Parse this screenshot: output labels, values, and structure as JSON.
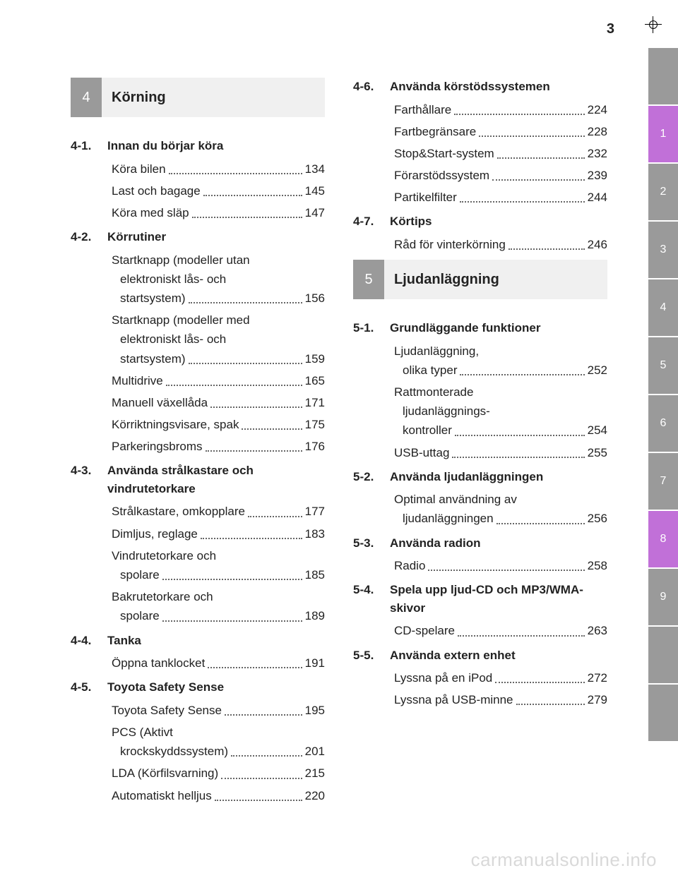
{
  "page_number": "3",
  "watermark": "carmanualsonline.info",
  "tabs": [
    {
      "label": "",
      "style": "gray"
    },
    {
      "label": "1",
      "style": "active"
    },
    {
      "label": "2",
      "style": "gray"
    },
    {
      "label": "3",
      "style": "gray"
    },
    {
      "label": "4",
      "style": "gray"
    },
    {
      "label": "5",
      "style": "gray"
    },
    {
      "label": "6",
      "style": "gray"
    },
    {
      "label": "7",
      "style": "gray"
    },
    {
      "label": "8",
      "style": "active"
    },
    {
      "label": "9",
      "style": "gray"
    },
    {
      "label": "",
      "style": "gray"
    },
    {
      "label": "",
      "style": "gray"
    }
  ],
  "left": {
    "chapter": {
      "num": "4",
      "title": "Körning"
    },
    "sections": [
      {
        "num": "4-1.",
        "title": "Innan du börjar köra",
        "entries": [
          {
            "lines": [
              "Köra bilen"
            ],
            "page": "134"
          },
          {
            "lines": [
              "Last och bagage"
            ],
            "page": "145"
          },
          {
            "lines": [
              "Köra med släp"
            ],
            "page": "147"
          }
        ]
      },
      {
        "num": "4-2.",
        "title": "Körrutiner",
        "entries": [
          {
            "lines": [
              "Startknapp (modeller utan",
              "elektroniskt lås- och",
              "startsystem)"
            ],
            "page": "156"
          },
          {
            "lines": [
              "Startknapp (modeller med",
              "elektroniskt lås- och",
              "startsystem)"
            ],
            "page": "159"
          },
          {
            "lines": [
              "Multidrive"
            ],
            "page": "165"
          },
          {
            "lines": [
              "Manuell växellåda"
            ],
            "page": "171"
          },
          {
            "lines": [
              "Körriktningsvisare, spak"
            ],
            "page": "175"
          },
          {
            "lines": [
              "Parkeringsbroms"
            ],
            "page": "176"
          }
        ]
      },
      {
        "num": "4-3.",
        "title": "Använda strålkastare och vindrutetorkare",
        "entries": [
          {
            "lines": [
              "Strålkastare, omkopplare"
            ],
            "page": "177"
          },
          {
            "lines": [
              "Dimljus, reglage"
            ],
            "page": "183"
          },
          {
            "lines": [
              "Vindrutetorkare och",
              "spolare"
            ],
            "page": "185"
          },
          {
            "lines": [
              "Bakrutetorkare och",
              "spolare"
            ],
            "page": "189"
          }
        ]
      },
      {
        "num": "4-4.",
        "title": "Tanka",
        "entries": [
          {
            "lines": [
              "Öppna tanklocket"
            ],
            "page": "191"
          }
        ]
      },
      {
        "num": "4-5.",
        "title": "Toyota Safety Sense",
        "entries": [
          {
            "lines": [
              "Toyota Safety Sense"
            ],
            "page": "195"
          },
          {
            "lines": [
              "PCS (Aktivt",
              "krockskyddssystem)"
            ],
            "page": "201"
          },
          {
            "lines": [
              "LDA (Körfilsvarning)"
            ],
            "page": "215"
          },
          {
            "lines": [
              "Automatiskt helljus"
            ],
            "page": "220"
          }
        ]
      }
    ]
  },
  "right": {
    "top_sections": [
      {
        "num": "4-6.",
        "title": "Använda körstödssystemen",
        "entries": [
          {
            "lines": [
              "Farthållare"
            ],
            "page": "224"
          },
          {
            "lines": [
              "Fartbegränsare"
            ],
            "page": "228"
          },
          {
            "lines": [
              "Stop&Start-system"
            ],
            "page": "232"
          },
          {
            "lines": [
              "Förarstödssystem"
            ],
            "page": "239"
          },
          {
            "lines": [
              "Partikelfilter"
            ],
            "page": "244"
          }
        ]
      },
      {
        "num": "4-7.",
        "title": "Körtips",
        "entries": [
          {
            "lines": [
              "Råd för vinterkörning"
            ],
            "page": "246"
          }
        ]
      }
    ],
    "chapter": {
      "num": "5",
      "title": "Ljudanläggning"
    },
    "sections": [
      {
        "num": "5-1.",
        "title": "Grundläggande funktioner",
        "entries": [
          {
            "lines": [
              "Ljudanläggning,",
              "olika typer"
            ],
            "page": "252"
          },
          {
            "lines": [
              "Rattmonterade",
              "ljudanläggnings-",
              "kontroller"
            ],
            "page": "254"
          },
          {
            "lines": [
              "USB-uttag"
            ],
            "page": "255"
          }
        ]
      },
      {
        "num": "5-2.",
        "title": "Använda ljudanläggningen",
        "entries": [
          {
            "lines": [
              "Optimal användning av",
              "ljudanläggningen"
            ],
            "page": "256"
          }
        ]
      },
      {
        "num": "5-3.",
        "title": "Använda radion",
        "entries": [
          {
            "lines": [
              "Radio"
            ],
            "page": "258"
          }
        ]
      },
      {
        "num": "5-4.",
        "title": "Spela upp ljud-CD och MP3/WMA-skivor",
        "entries": [
          {
            "lines": [
              "CD-spelare"
            ],
            "page": "263"
          }
        ]
      },
      {
        "num": "5-5.",
        "title": "Använda extern enhet",
        "entries": [
          {
            "lines": [
              "Lyssna på en iPod"
            ],
            "page": "272"
          },
          {
            "lines": [
              "Lyssna på USB-minne"
            ],
            "page": "279"
          }
        ]
      }
    ]
  }
}
